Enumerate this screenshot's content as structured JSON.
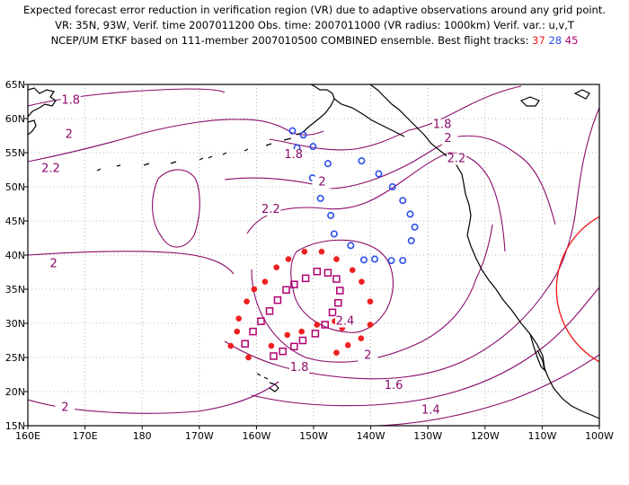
{
  "header": {
    "line1": "Expected forecast error reduction in verification region (VR) due to adaptive observations around any grid point.",
    "line2": "VR: 35N, 93W, Verif. time 2007011200  Obs. time: 2007011000 (VR radius: 1000km)   Verif. var.: u,v,T",
    "line3": "NCEP/UM ETKF based on 111-member 2007010500 COMBINED ensemble.  Best flight tracks:",
    "tracks": [
      {
        "label": "37",
        "color": "#ee2020"
      },
      {
        "label": "28",
        "color": "#2a4fe8"
      },
      {
        "label": "45",
        "color": "#b00070"
      }
    ]
  },
  "map": {
    "lon_range": [
      160,
      260
    ],
    "lat_range": [
      15,
      65
    ],
    "lon_ticks": [
      "160E",
      "170E",
      "180",
      "170W",
      "160W",
      "150W",
      "140W",
      "130W",
      "120W",
      "110W",
      "100W"
    ],
    "lat_ticks": [
      "15N",
      "20N",
      "25N",
      "30N",
      "35N",
      "40N",
      "45N",
      "50N",
      "55N",
      "60N",
      "65N"
    ],
    "grid": true,
    "contour_color": "#8a0a6a",
    "contour_labels": [
      {
        "text": "1.8",
        "lon": 167.5,
        "lat": 62.2
      },
      {
        "text": "2",
        "lon": 167.2,
        "lat": 57.2
      },
      {
        "text": "2.2",
        "lon": 164.0,
        "lat": 52.2
      },
      {
        "text": "2",
        "lon": 164.5,
        "lat": 38.2
      },
      {
        "text": "2",
        "lon": 166.5,
        "lat": 17.2
      },
      {
        "text": "1.8",
        "lon": 206.5,
        "lat": 54.2
      },
      {
        "text": "2",
        "lon": 211.5,
        "lat": 50.2
      },
      {
        "text": "2.2",
        "lon": 202.5,
        "lat": 46.2
      },
      {
        "text": "1.8",
        "lon": 232.5,
        "lat": 58.6
      },
      {
        "text": "2",
        "lon": 233.5,
        "lat": 56.6
      },
      {
        "text": "2.2",
        "lon": 235.0,
        "lat": 53.6
      },
      {
        "text": "2.4",
        "lon": 215.5,
        "lat": 29.8
      },
      {
        "text": "1.8",
        "lon": 207.5,
        "lat": 23.0
      },
      {
        "text": "2",
        "lon": 219.5,
        "lat": 24.8
      },
      {
        "text": "1.6",
        "lon": 224.0,
        "lat": 20.4
      },
      {
        "text": "1.4",
        "lon": 230.5,
        "lat": 16.8
      }
    ],
    "tracks": [
      {
        "label": "37",
        "color": "#ee2020",
        "marker": "dot",
        "points": [
          [
            214.0,
            25.7
          ],
          [
            216.0,
            26.8
          ],
          [
            218.3,
            27.8
          ],
          [
            219.9,
            29.8
          ],
          [
            219.9,
            33.2
          ],
          [
            218.4,
            36.1
          ],
          [
            216.8,
            37.8
          ],
          [
            214.0,
            39.4
          ],
          [
            211.4,
            40.5
          ],
          [
            208.4,
            40.5
          ],
          [
            205.6,
            39.4
          ],
          [
            203.5,
            38.2
          ],
          [
            201.5,
            36.1
          ],
          [
            199.6,
            35.0
          ],
          [
            198.3,
            33.2
          ],
          [
            196.9,
            30.7
          ],
          [
            196.6,
            28.8
          ],
          [
            195.5,
            26.7
          ],
          [
            198.6,
            25.0
          ],
          [
            202.6,
            26.7
          ],
          [
            205.4,
            28.3
          ],
          [
            207.9,
            28.8
          ],
          [
            210.6,
            29.8
          ],
          [
            213.7,
            30.3
          ],
          [
            215.0,
            29.3
          ]
        ]
      },
      {
        "label": "28",
        "color": "#2a4fe8",
        "marker": "ring",
        "points": [
          [
            206.3,
            58.2
          ],
          [
            208.2,
            57.6
          ],
          [
            207.1,
            55.7
          ],
          [
            209.9,
            55.9
          ],
          [
            212.5,
            53.4
          ],
          [
            209.8,
            51.3
          ],
          [
            211.2,
            48.3
          ],
          [
            213.0,
            45.8
          ],
          [
            213.6,
            43.1
          ],
          [
            216.5,
            41.4
          ],
          [
            218.8,
            39.3
          ],
          [
            220.7,
            39.4
          ],
          [
            223.6,
            39.2
          ],
          [
            225.6,
            39.2
          ],
          [
            227.1,
            42.1
          ],
          [
            227.7,
            44.1
          ],
          [
            226.9,
            46.0
          ],
          [
            225.6,
            48.0
          ],
          [
            223.8,
            50.0
          ],
          [
            221.4,
            51.9
          ],
          [
            218.4,
            53.8
          ]
        ]
      },
      {
        "label": "45",
        "color": "#b00070",
        "marker": "square",
        "points": [
          [
            203.0,
            25.2
          ],
          [
            204.6,
            25.9
          ],
          [
            206.6,
            26.6
          ],
          [
            208.1,
            27.5
          ],
          [
            210.3,
            28.5
          ],
          [
            212.0,
            29.8
          ],
          [
            213.3,
            31.6
          ],
          [
            214.3,
            33.0
          ],
          [
            214.6,
            34.8
          ],
          [
            214.0,
            36.5
          ],
          [
            212.5,
            37.4
          ],
          [
            210.6,
            37.6
          ],
          [
            208.6,
            36.6
          ],
          [
            206.6,
            35.7
          ],
          [
            205.2,
            34.9
          ],
          [
            203.7,
            33.4
          ],
          [
            202.3,
            31.8
          ],
          [
            200.8,
            30.3
          ],
          [
            199.4,
            28.8
          ],
          [
            198.0,
            27.0
          ]
        ]
      }
    ],
    "vr_circle": {
      "lon": 267,
      "lat": 35,
      "radius_km": 1000
    }
  }
}
